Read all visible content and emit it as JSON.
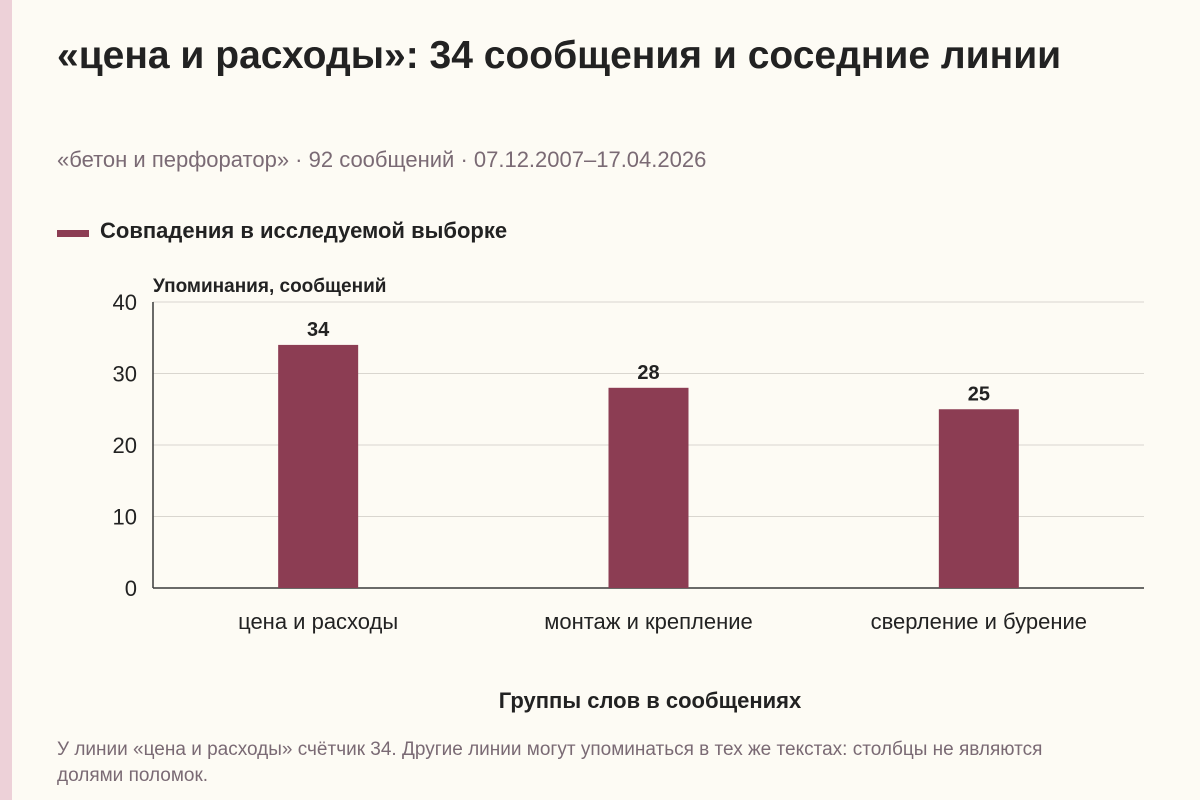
{
  "header": {
    "title": "«цена и расходы»: 34 сообщения и соседние линии",
    "subtitle": "«бетон и перфоратор» · 92 сообщений · 07.12.2007–17.04.2026"
  },
  "legend": {
    "label": "Совпадения в исследуемой выборке"
  },
  "colors": {
    "bar": "#8c3d53",
    "grid": "#d9d6cf",
    "axis": "#3a3a3a",
    "text": "#222222",
    "muted": "#7a6a74"
  },
  "chart_data": {
    "type": "bar",
    "categories": [
      "цена и расходы",
      "монтаж и крепление",
      "сверление и бурение"
    ],
    "series": [
      {
        "name": "Совпадения в исследуемой выборке",
        "values": [
          34,
          28,
          25
        ]
      }
    ],
    "ylabel": "Упоминания, сообщений",
    "xlabel": "Группы слов в сообщениях",
    "ylim": [
      0,
      40
    ],
    "yticks": [
      0,
      10,
      20,
      30,
      40
    ],
    "grid": true,
    "legend_position": "top-left"
  },
  "footnote": "У линии «цена и расходы» счётчик 34. Другие линии могут упоминаться в тех же текстах: столбцы не являются долями поломок."
}
